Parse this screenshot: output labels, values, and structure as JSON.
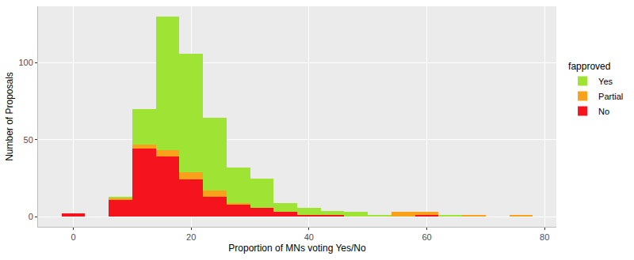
{
  "chart_data": {
    "type": "histogram",
    "x_label": "Proportion of MNs voting Yes/No",
    "y_label": "Number of Proposals",
    "legend_title": "fapproved",
    "bins": [
      -2,
      2,
      6,
      10,
      14,
      18,
      22,
      26,
      30,
      34,
      38,
      42,
      46,
      50,
      54,
      58,
      62,
      66,
      70,
      74,
      78
    ],
    "series": [
      {
        "name": "No",
        "color": "#f5141e",
        "values": [
          2,
          0,
          11,
          44,
          39,
          24,
          13,
          8,
          6,
          3,
          1,
          1,
          0,
          0,
          0,
          1,
          0,
          0,
          0,
          0
        ]
      },
      {
        "name": "Partial",
        "color": "#f9a11b",
        "values": [
          0,
          0,
          1,
          3,
          4,
          5,
          4,
          1,
          0,
          0,
          0,
          0,
          0,
          0,
          3,
          2,
          0,
          1,
          0,
          1
        ]
      },
      {
        "name": "Yes",
        "color": "#9fe335",
        "values": [
          0,
          0,
          1,
          23,
          87,
          77,
          47,
          23,
          19,
          6,
          5,
          3,
          3,
          1,
          0,
          0,
          1,
          0,
          0,
          0
        ]
      }
    ],
    "stacked": true,
    "xlim": [
      -6,
      82
    ],
    "xticks": [
      0,
      20,
      40,
      60,
      80
    ],
    "ylim": [
      -6.5,
      136.5
    ],
    "yticks": [
      0,
      50,
      100
    ],
    "grid": true,
    "legend": "right"
  }
}
